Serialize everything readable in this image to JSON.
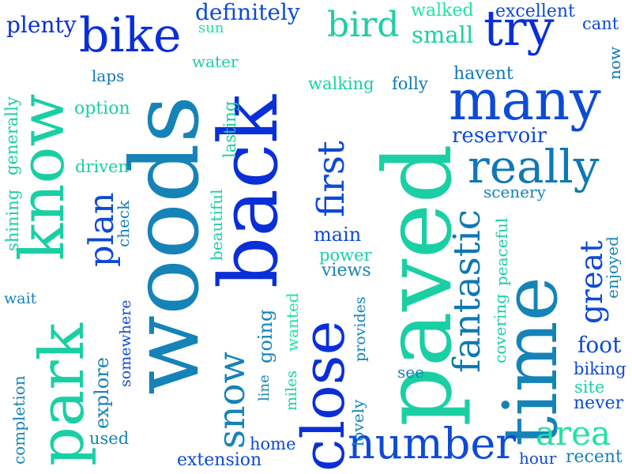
{
  "palette": {
    "blue": "#0a2fd8",
    "royal": "#0d4ad6",
    "teal": "#1583b8",
    "teal_dark": "#0f78b4",
    "aqua": "#1bcfa4",
    "green": "#1fe3a0",
    "sky": "#1a8ccc"
  },
  "words": [
    {
      "text": "woods",
      "color": "teal"
    },
    {
      "text": "paved",
      "color": "aqua"
    },
    {
      "text": "back",
      "color": "blue"
    },
    {
      "text": "time",
      "color": "teal"
    },
    {
      "text": "know",
      "color": "aqua"
    },
    {
      "text": "park",
      "color": "aqua"
    },
    {
      "text": "close",
      "color": "blue"
    },
    {
      "text": "many",
      "color": "royal"
    },
    {
      "text": "bike",
      "color": "blue"
    },
    {
      "text": "try",
      "color": "blue"
    },
    {
      "text": "really",
      "color": "teal_dark"
    },
    {
      "text": "number",
      "color": "royal"
    },
    {
      "text": "fantastic",
      "color": "teal_dark"
    },
    {
      "text": "snow",
      "color": "teal"
    },
    {
      "text": "first",
      "color": "royal"
    },
    {
      "text": "bird",
      "color": "aqua"
    },
    {
      "text": "area",
      "color": "green"
    },
    {
      "text": "plan",
      "color": "royal"
    },
    {
      "text": "great",
      "color": "royal"
    },
    {
      "text": "definitely",
      "color": "royal"
    },
    {
      "text": "plenty",
      "color": "blue"
    },
    {
      "text": "small",
      "color": "aqua"
    },
    {
      "text": "walked",
      "color": "green"
    },
    {
      "text": "excellent",
      "color": "royal"
    },
    {
      "text": "cant",
      "color": "royal"
    },
    {
      "text": "sun",
      "color": "green"
    },
    {
      "text": "water",
      "color": "aqua"
    },
    {
      "text": "laps",
      "color": "teal_dark"
    },
    {
      "text": "walking",
      "color": "aqua"
    },
    {
      "text": "folly",
      "color": "teal_dark"
    },
    {
      "text": "havent",
      "color": "teal_dark"
    },
    {
      "text": "now",
      "color": "teal_dark"
    },
    {
      "text": "option",
      "color": "aqua"
    },
    {
      "text": "generally",
      "color": "aqua"
    },
    {
      "text": "lasting",
      "color": "aqua"
    },
    {
      "text": "reservoir",
      "color": "royal"
    },
    {
      "text": "driven",
      "color": "aqua"
    },
    {
      "text": "scenery",
      "color": "teal"
    },
    {
      "text": "beautiful",
      "color": "aqua"
    },
    {
      "text": "shining",
      "color": "aqua"
    },
    {
      "text": "check",
      "color": "teal"
    },
    {
      "text": "main",
      "color": "royal"
    },
    {
      "text": "power",
      "color": "aqua"
    },
    {
      "text": "views",
      "color": "teal"
    },
    {
      "text": "covering",
      "color": "aqua"
    },
    {
      "text": "peaceful",
      "color": "aqua"
    },
    {
      "text": "enjoyed",
      "color": "teal"
    },
    {
      "text": "recent",
      "color": "teal"
    },
    {
      "text": "wait",
      "color": "teal"
    },
    {
      "text": "somewhere",
      "color": "royal"
    },
    {
      "text": "explore",
      "color": "teal"
    },
    {
      "text": "line",
      "color": "teal"
    },
    {
      "text": "going",
      "color": "teal"
    },
    {
      "text": "miles",
      "color": "aqua"
    },
    {
      "text": "wanted",
      "color": "green"
    },
    {
      "text": "provides",
      "color": "teal"
    },
    {
      "text": "see",
      "color": "teal"
    },
    {
      "text": "foot",
      "color": "royal"
    },
    {
      "text": "biking",
      "color": "royal"
    },
    {
      "text": "site",
      "color": "aqua"
    },
    {
      "text": "never",
      "color": "royal"
    },
    {
      "text": "completion",
      "color": "teal"
    },
    {
      "text": "used",
      "color": "teal"
    },
    {
      "text": "lovely",
      "color": "teal"
    },
    {
      "text": "home",
      "color": "royal"
    },
    {
      "text": "extension",
      "color": "royal"
    },
    {
      "text": "hour",
      "color": "royal"
    }
  ]
}
